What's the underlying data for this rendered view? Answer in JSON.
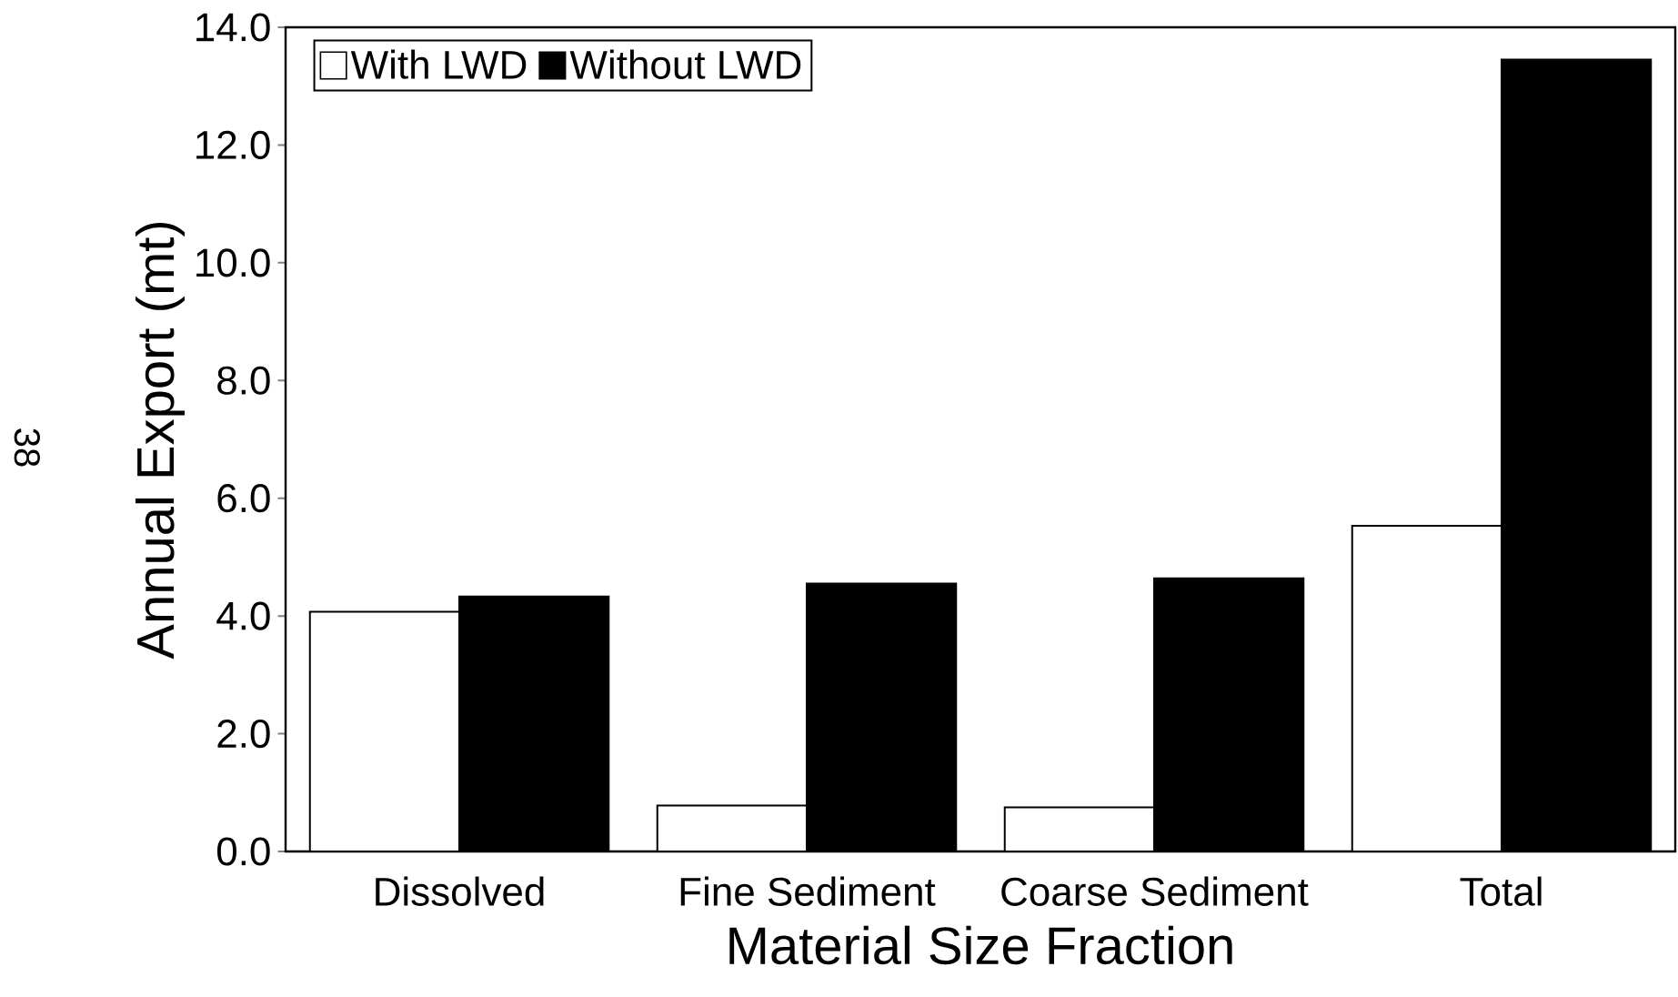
{
  "chart_data": {
    "type": "bar",
    "xlabel": "Material Size Fraction",
    "ylabel": "Annual Export (mt)",
    "categories": [
      "Dissolved",
      "Fine Sediment",
      "Coarse Sediment",
      "Total"
    ],
    "series": [
      {
        "name": "With LWD",
        "color": "#ffffff",
        "values": [
          4.07,
          0.78,
          0.75,
          5.53
        ]
      },
      {
        "name": "Without LWD",
        "color": "#000000",
        "values": [
          4.33,
          4.55,
          4.64,
          13.45
        ]
      }
    ],
    "ylim": [
      0,
      14
    ],
    "yticks": [
      {
        "value": 0,
        "label": "0.0"
      },
      {
        "value": 2,
        "label": "2.0"
      },
      {
        "value": 4,
        "label": "4.0"
      },
      {
        "value": 6,
        "label": "6.0"
      },
      {
        "value": 8,
        "label": "8.0"
      },
      {
        "value": 10,
        "label": "10.0"
      },
      {
        "value": 12,
        "label": "12.0"
      },
      {
        "value": 14,
        "label": "14.0"
      }
    ],
    "legend": "top left",
    "grid": false,
    "annotations": [
      "38"
    ]
  }
}
